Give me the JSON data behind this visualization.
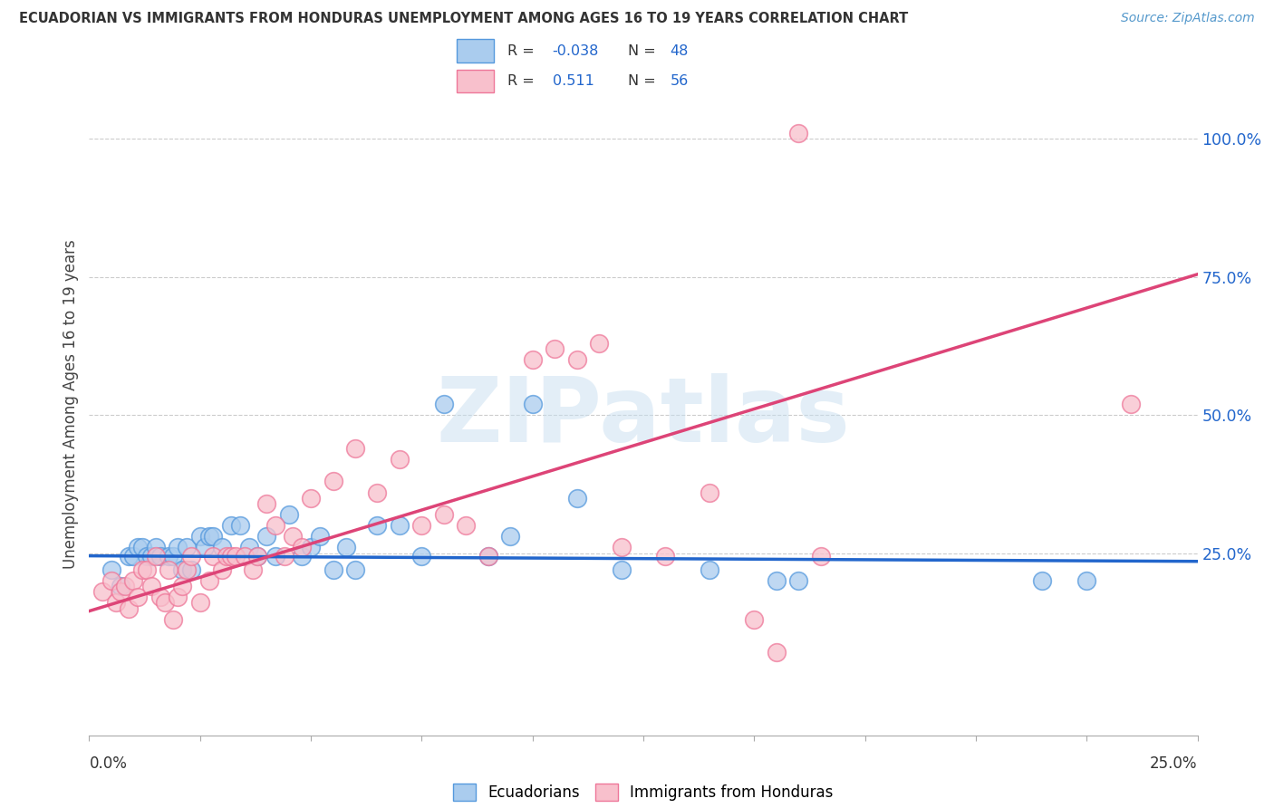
{
  "title": "ECUADORIAN VS IMMIGRANTS FROM HONDURAS UNEMPLOYMENT AMONG AGES 16 TO 19 YEARS CORRELATION CHART",
  "source": "Source: ZipAtlas.com",
  "ylabel": "Unemployment Among Ages 16 to 19 years",
  "xmin": 0.0,
  "xmax": 0.25,
  "ymin": -0.08,
  "ymax": 1.12,
  "right_yticks": [
    0.25,
    0.5,
    0.75,
    1.0
  ],
  "right_yticklabels": [
    "25.0%",
    "50.0%",
    "75.0%",
    "100.0%"
  ],
  "blue_fill": "#aaccee",
  "blue_edge": "#5599dd",
  "pink_fill": "#f8c0cc",
  "pink_edge": "#ee7799",
  "blue_line_color": "#2266cc",
  "pink_line_color": "#dd4477",
  "watermark_color": "#c8dff0",
  "blue_R": -0.038,
  "blue_N": 48,
  "pink_R": 0.511,
  "pink_N": 56,
  "blue_trend_x0": 0.0,
  "blue_trend_y0": 0.245,
  "blue_trend_x1": 0.25,
  "blue_trend_y1": 0.235,
  "pink_trend_x0": 0.0,
  "pink_trend_y0": 0.145,
  "pink_trend_x1": 0.25,
  "pink_trend_y1": 0.755,
  "blue_scatter_x": [
    0.005,
    0.007,
    0.009,
    0.01,
    0.011,
    0.012,
    0.013,
    0.014,
    0.015,
    0.016,
    0.018,
    0.019,
    0.02,
    0.021,
    0.022,
    0.023,
    0.025,
    0.026,
    0.027,
    0.028,
    0.03,
    0.032,
    0.034,
    0.036,
    0.038,
    0.04,
    0.042,
    0.045,
    0.048,
    0.05,
    0.052,
    0.055,
    0.058,
    0.06,
    0.065,
    0.07,
    0.075,
    0.08,
    0.09,
    0.095,
    0.1,
    0.11,
    0.12,
    0.14,
    0.155,
    0.16,
    0.215,
    0.225
  ],
  "blue_scatter_y": [
    0.22,
    0.19,
    0.245,
    0.245,
    0.26,
    0.26,
    0.245,
    0.245,
    0.26,
    0.245,
    0.245,
    0.245,
    0.26,
    0.22,
    0.26,
    0.22,
    0.28,
    0.26,
    0.28,
    0.28,
    0.26,
    0.3,
    0.3,
    0.26,
    0.245,
    0.28,
    0.245,
    0.32,
    0.245,
    0.26,
    0.28,
    0.22,
    0.26,
    0.22,
    0.3,
    0.3,
    0.245,
    0.52,
    0.245,
    0.28,
    0.52,
    0.35,
    0.22,
    0.22,
    0.2,
    0.2,
    0.2,
    0.2
  ],
  "pink_scatter_x": [
    0.003,
    0.005,
    0.006,
    0.007,
    0.008,
    0.009,
    0.01,
    0.011,
    0.012,
    0.013,
    0.014,
    0.015,
    0.016,
    0.017,
    0.018,
    0.019,
    0.02,
    0.021,
    0.022,
    0.023,
    0.025,
    0.027,
    0.028,
    0.03,
    0.031,
    0.032,
    0.033,
    0.035,
    0.037,
    0.038,
    0.04,
    0.042,
    0.044,
    0.046,
    0.048,
    0.05,
    0.055,
    0.06,
    0.065,
    0.07,
    0.075,
    0.08,
    0.085,
    0.09,
    0.1,
    0.105,
    0.11,
    0.115,
    0.12,
    0.13,
    0.14,
    0.15,
    0.155,
    0.16,
    0.165,
    0.235
  ],
  "pink_scatter_y": [
    0.18,
    0.2,
    0.16,
    0.18,
    0.19,
    0.15,
    0.2,
    0.17,
    0.22,
    0.22,
    0.19,
    0.245,
    0.17,
    0.16,
    0.22,
    0.13,
    0.17,
    0.19,
    0.22,
    0.245,
    0.16,
    0.2,
    0.245,
    0.22,
    0.245,
    0.245,
    0.245,
    0.245,
    0.22,
    0.245,
    0.34,
    0.3,
    0.245,
    0.28,
    0.26,
    0.35,
    0.38,
    0.44,
    0.36,
    0.42,
    0.3,
    0.32,
    0.3,
    0.245,
    0.6,
    0.62,
    0.6,
    0.63,
    0.26,
    0.245,
    0.36,
    0.13,
    0.07,
    1.01,
    0.245,
    0.52
  ]
}
